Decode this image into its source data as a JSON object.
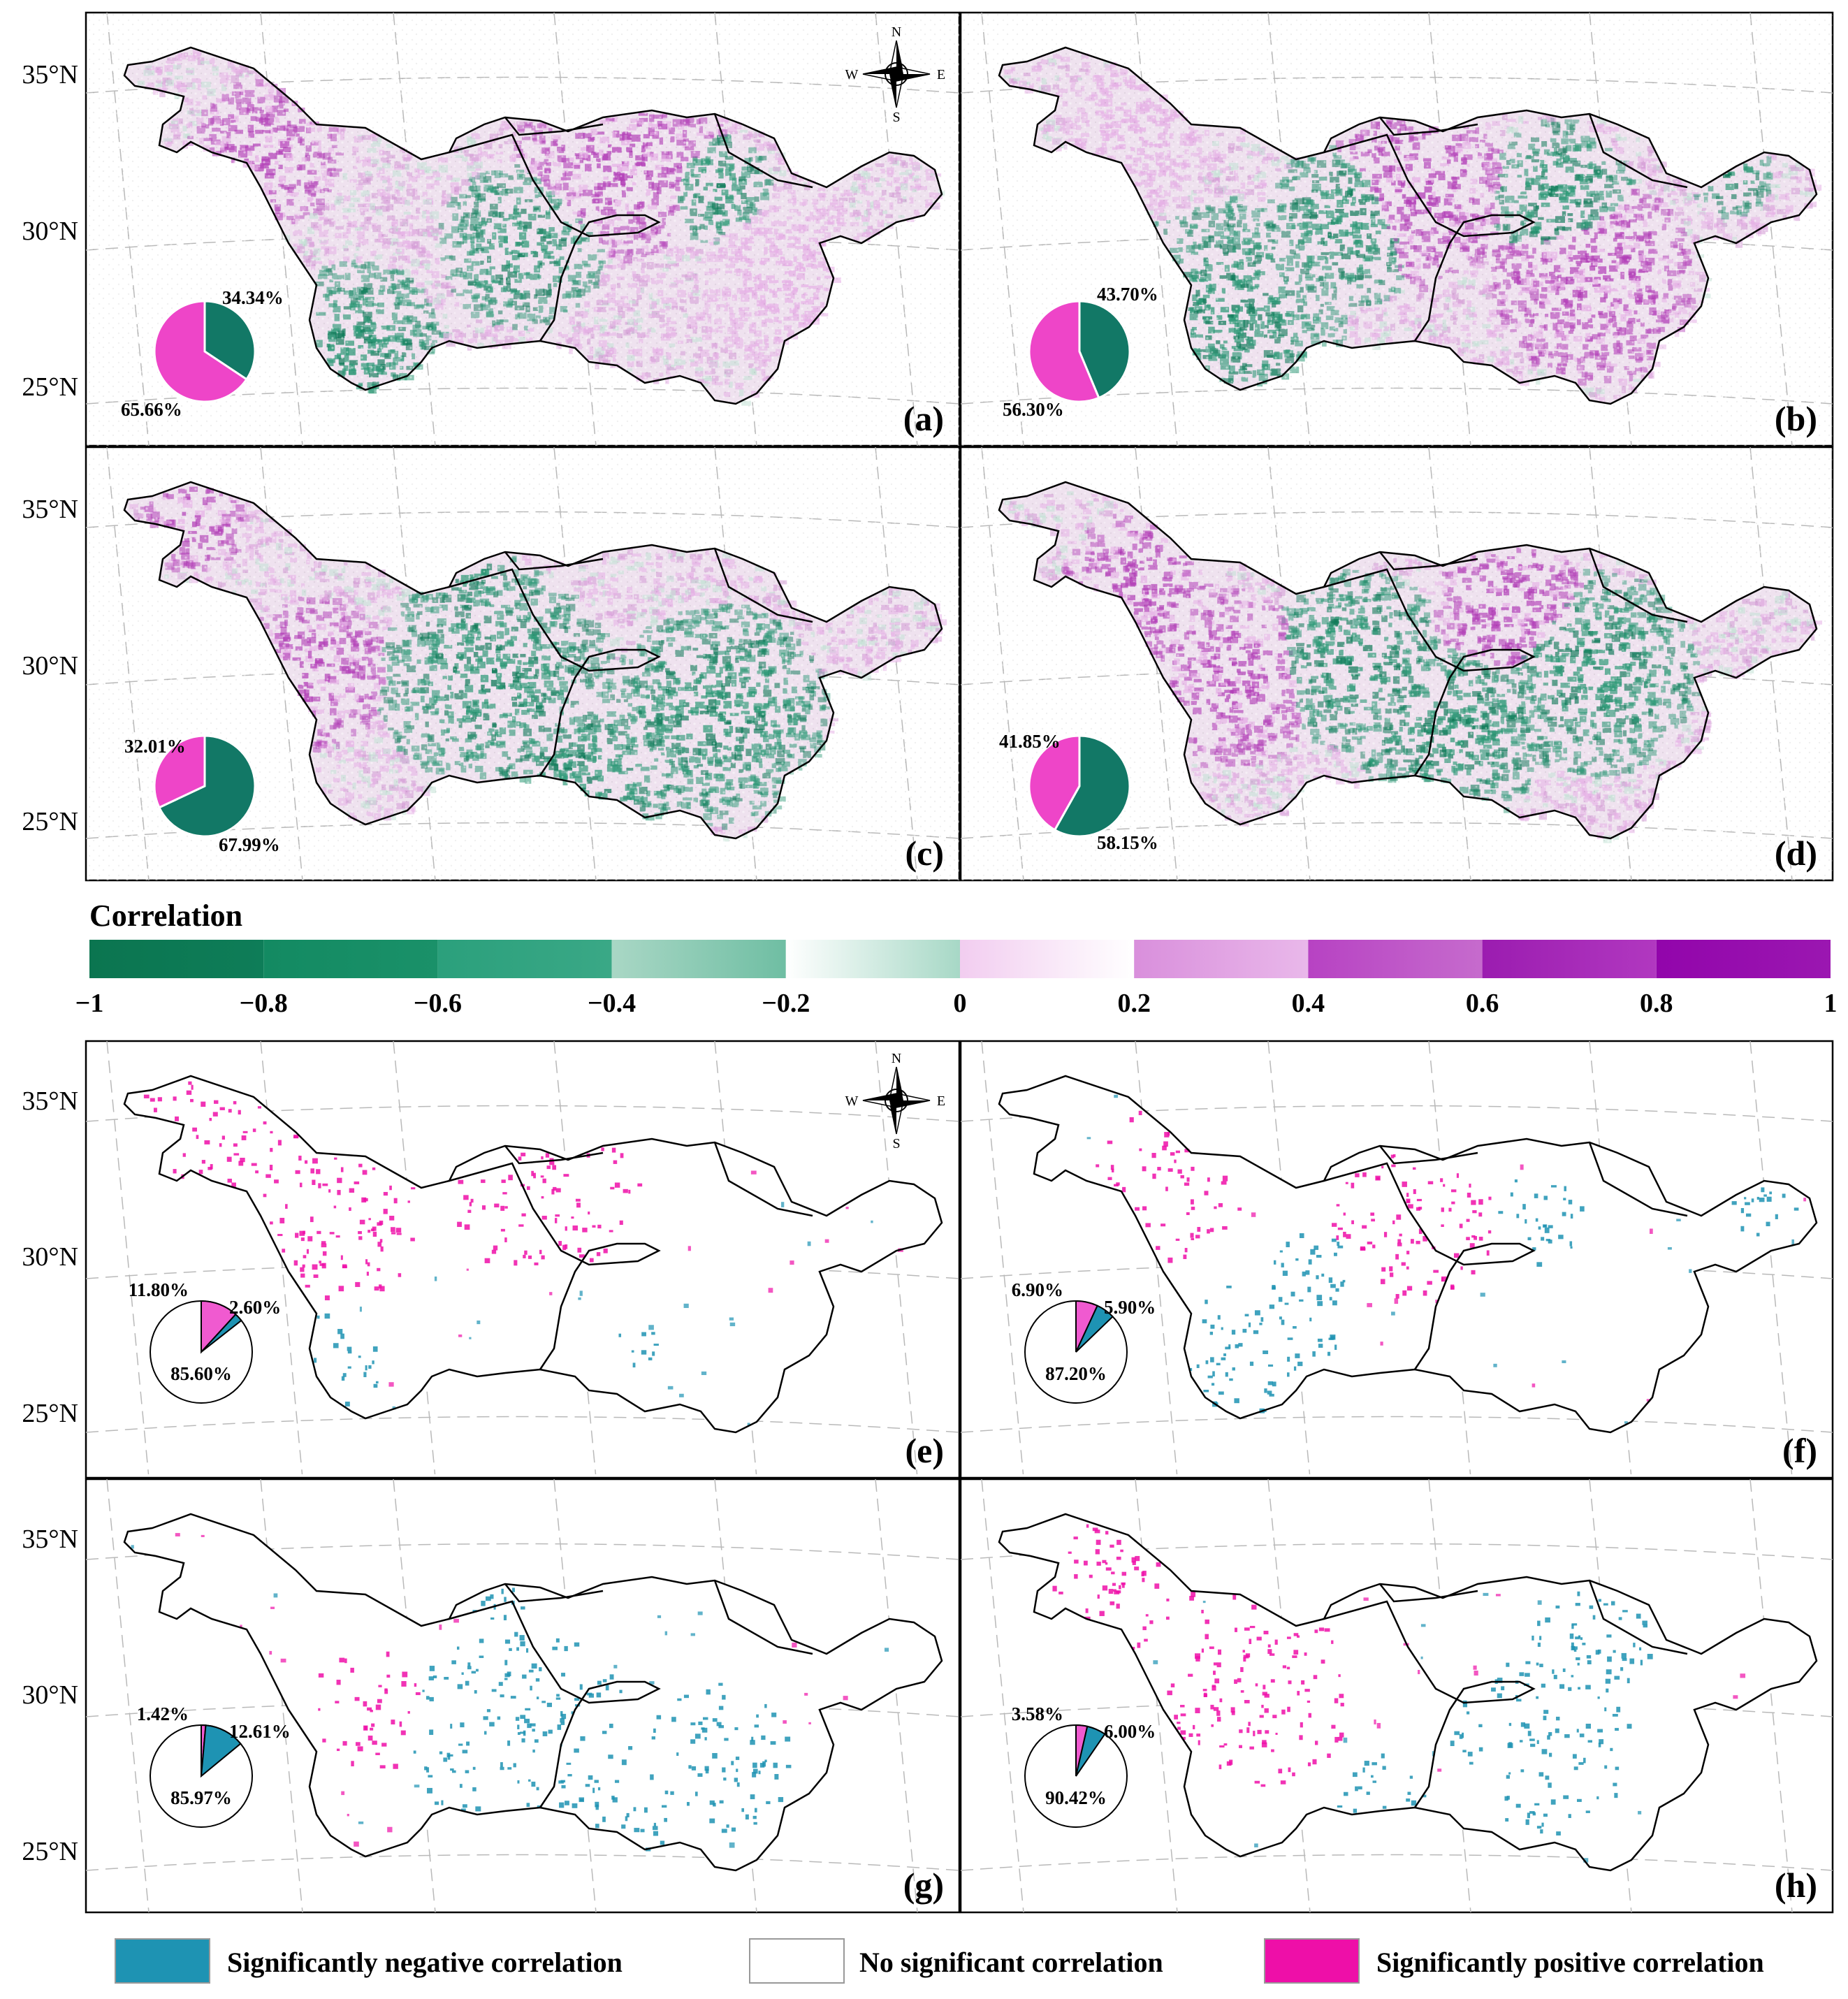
{
  "lat_labels": [
    "35°N",
    "30°N",
    "25°N"
  ],
  "colors": {
    "green_dark": "#0e7a58",
    "green": "#2f9a78",
    "purple": "#b340b8",
    "pink_light": "#e6b0e6",
    "teal": "#1e93b3",
    "magenta": "#ee0fa8",
    "white": "#ffffff",
    "grid": "#b9b9b9"
  },
  "compass": {
    "n": "N",
    "s": "S",
    "e": "E",
    "w": "W"
  },
  "panels": [
    {
      "id": "a",
      "label": "(a)",
      "kind": "continuous",
      "negative_pct": 34.34,
      "positive_pct": 65.66,
      "pct_labels": [
        "34.34%",
        "65.66%"
      ]
    },
    {
      "id": "b",
      "label": "(b)",
      "kind": "continuous",
      "negative_pct": 43.7,
      "positive_pct": 56.3,
      "pct_labels": [
        "43.70%",
        "56.30%"
      ]
    },
    {
      "id": "c",
      "label": "(c)",
      "kind": "continuous",
      "negative_pct": 67.99,
      "positive_pct": 32.01,
      "pct_labels": [
        "32.01%",
        "67.99%"
      ]
    },
    {
      "id": "d",
      "label": "(d)",
      "kind": "continuous",
      "negative_pct": 58.15,
      "positive_pct": 41.85,
      "pct_labels": [
        "41.85%",
        "58.15%"
      ]
    },
    {
      "id": "e",
      "label": "(e)",
      "kind": "significance",
      "positive_pct": 11.8,
      "negative_pct": 2.6,
      "none_pct": 85.6,
      "pct_labels": [
        "11.80%",
        "2.60%",
        "85.60%"
      ]
    },
    {
      "id": "f",
      "label": "(f)",
      "kind": "significance",
      "positive_pct": 6.9,
      "negative_pct": 5.9,
      "none_pct": 87.2,
      "pct_labels": [
        "6.90%",
        "5.90%",
        "87.20%"
      ]
    },
    {
      "id": "g",
      "label": "(g)",
      "kind": "significance",
      "positive_pct": 1.42,
      "negative_pct": 12.61,
      "none_pct": 85.97,
      "pct_labels": [
        "1.42%",
        "12.61%",
        "85.97%"
      ]
    },
    {
      "id": "h",
      "label": "(h)",
      "kind": "significance",
      "positive_pct": 3.58,
      "negative_pct": 6.0,
      "none_pct": 90.42,
      "pct_labels": [
        "3.58%",
        "6.00%",
        "90.42%"
      ]
    }
  ],
  "colorbar": {
    "title": "Correlation",
    "ticks": [
      "−1",
      "−0.8",
      "−0.6",
      "−0.4",
      "−0.2",
      "0",
      "0.2",
      "0.4",
      "0.6",
      "0.8",
      "1"
    ],
    "segments": [
      {
        "from": -1.0,
        "to": -0.8,
        "c1": "#0b7550",
        "c2": "#0e7d58"
      },
      {
        "from": -0.8,
        "to": -0.6,
        "c1": "#138a62",
        "c2": "#1a9169"
      },
      {
        "from": -0.6,
        "to": -0.4,
        "c1": "#2ba07c",
        "c2": "#3aa886"
      },
      {
        "from": -0.4,
        "to": -0.2,
        "c1": "#a9d7c5",
        "c2": "#6fbea3"
      },
      {
        "from": -0.2,
        "to": 0.0,
        "c1": "#ffffff",
        "c2": "#a7d8c6"
      },
      {
        "from": 0.0,
        "to": 0.2,
        "c1": "#f2cdf0",
        "c2": "#ffffff"
      },
      {
        "from": 0.2,
        "to": 0.4,
        "c1": "#d98fdc",
        "c2": "#e9b8ea"
      },
      {
        "from": 0.4,
        "to": 0.6,
        "c1": "#b742c3",
        "c2": "#c66bcd"
      },
      {
        "from": 0.6,
        "to": 0.8,
        "c1": "#9b1cb0",
        "c2": "#b138c0"
      },
      {
        "from": 0.8,
        "to": 1.0,
        "c1": "#9205ab",
        "c2": "#9b17b1"
      }
    ]
  },
  "legend": [
    {
      "label": "Significantly negative correlation",
      "color": "#1e93b3"
    },
    {
      "label": "No significant correlation",
      "color": "#ffffff"
    },
    {
      "label": "Significantly positive correlation",
      "color": "#ee0fa8"
    }
  ]
}
